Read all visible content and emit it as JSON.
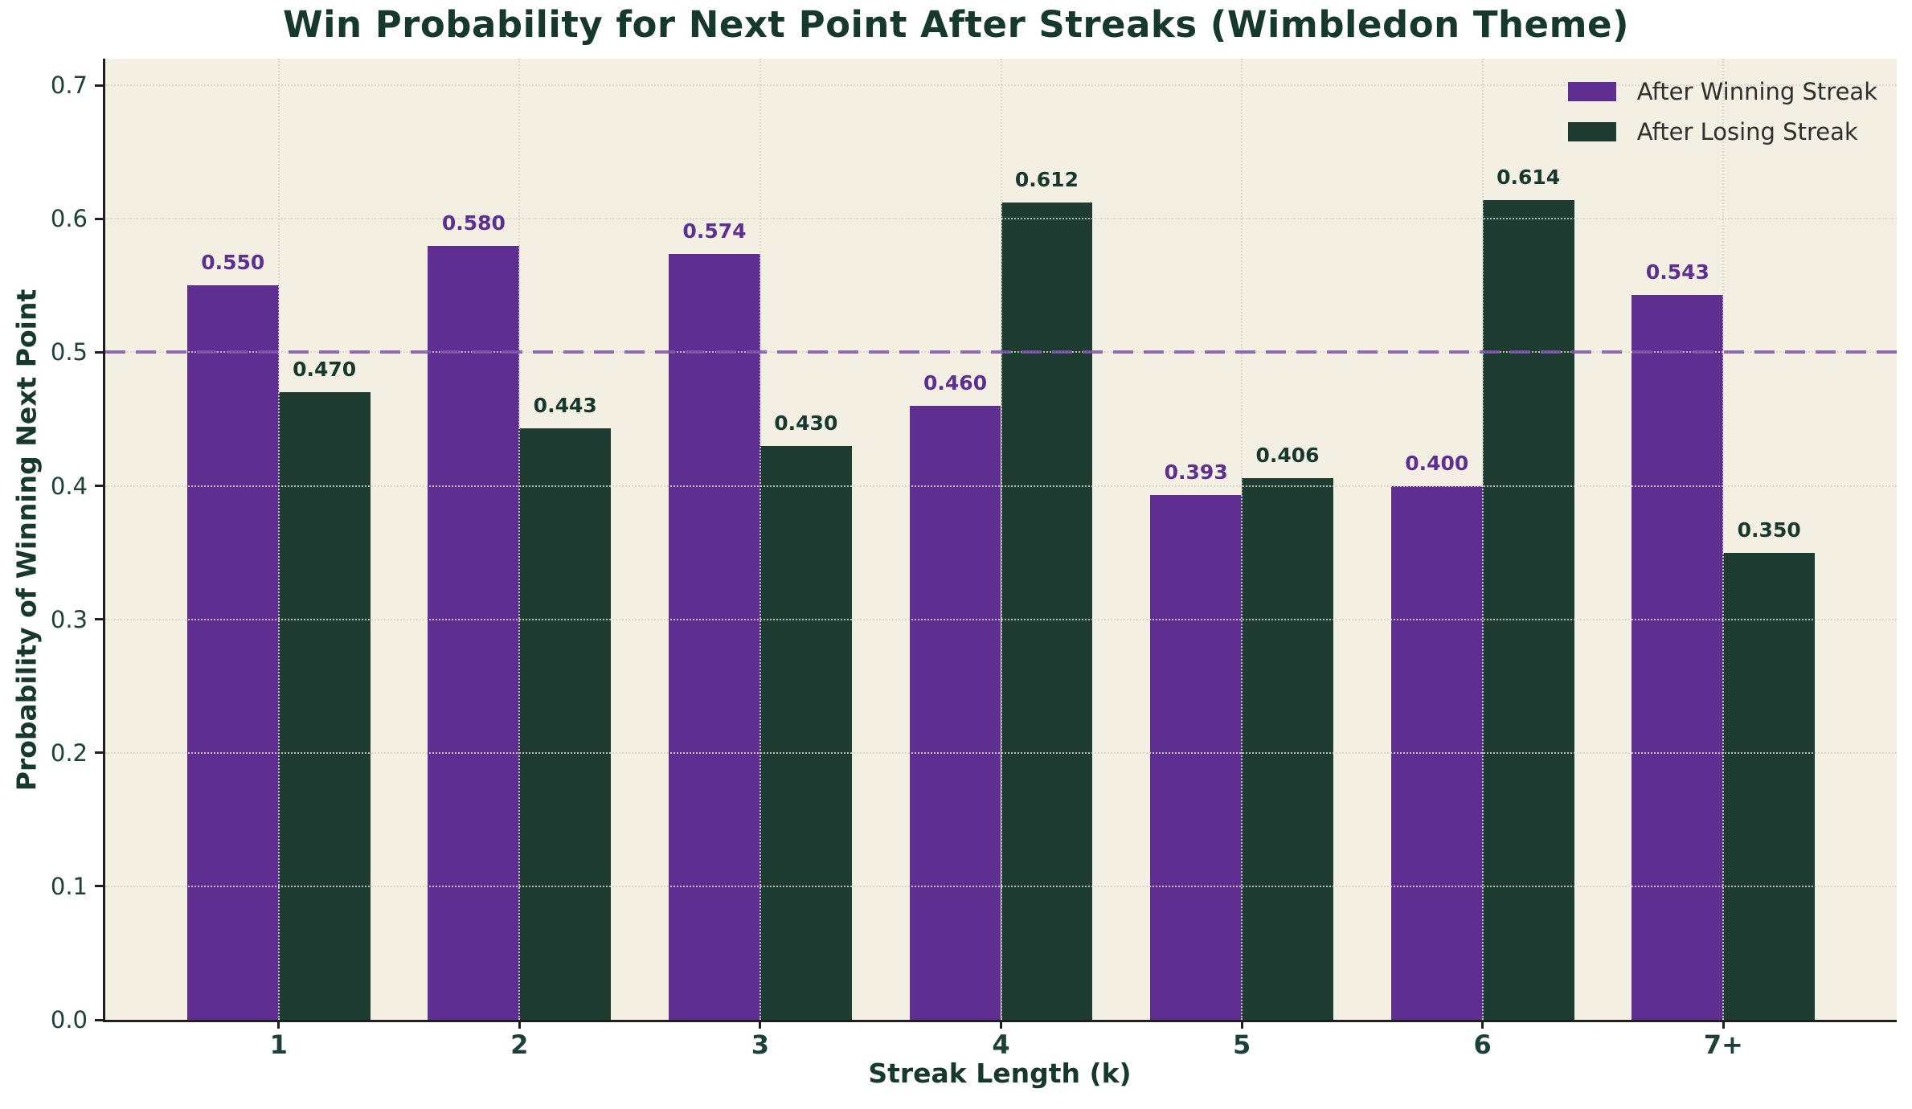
{
  "title": "Win Probability for Next Point After Streaks (Wimbledon Theme)",
  "chart_data": {
    "type": "bar",
    "title": "Win Probability for Next Point After Streaks (Wimbledon Theme)",
    "xlabel": "Streak Length (k)",
    "ylabel": "Probability of Winning Next Point",
    "categories": [
      "1",
      "2",
      "3",
      "4",
      "5",
      "6",
      "7+"
    ],
    "series": [
      {
        "name": "After Winning Streak",
        "color": "#5e2f91",
        "label_color": "#5e2f91",
        "values": [
          0.55,
          0.58,
          0.574,
          0.46,
          0.393,
          0.4,
          0.543
        ]
      },
      {
        "name": "After Losing Streak",
        "color": "#1e3c32",
        "label_color": "#17382d",
        "values": [
          0.47,
          0.443,
          0.43,
          0.612,
          0.406,
          0.614,
          0.35
        ]
      }
    ],
    "ylim": [
      0,
      0.72
    ],
    "xlim": [
      -0.72,
      6.72
    ],
    "yticks": [
      0.0,
      0.1,
      0.2,
      0.3,
      0.4,
      0.5,
      0.6,
      0.7
    ],
    "bar_width_units": 0.38,
    "grid": true,
    "legend_position": "upper right",
    "value_label_decimals": 3,
    "reference_line": {
      "value": 0.5,
      "color": "rgba(125,85,170,0.85)",
      "style": "dashed"
    }
  },
  "colors": {
    "figure_background": "#ffffff",
    "axes_background": "#f3f0e3",
    "title_text": "#17382d",
    "tick_text": "#1d4038",
    "spine": "#1f1f1f",
    "gridline": "rgba(214,211,197,0.85)",
    "legend_text": "#2e2e2e",
    "winning_bar": "#5e2f91",
    "losing_bar": "#1e3c32",
    "reference_line": "rgba(125,85,170,0.85)"
  }
}
